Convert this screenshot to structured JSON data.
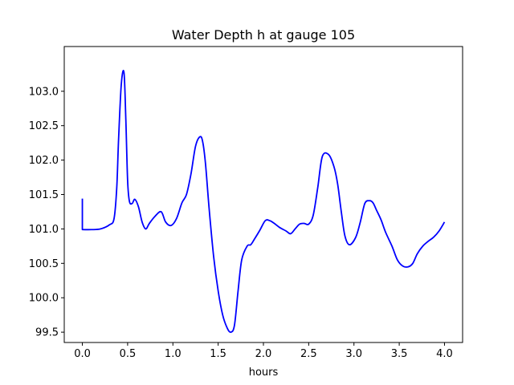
{
  "chart_data": {
    "type": "line",
    "title": "Water Depth h at gauge 105",
    "xlabel": "hours",
    "ylabel": "",
    "xlim": [
      -0.2,
      4.2
    ],
    "ylim": [
      99.35,
      103.65
    ],
    "x_ticks": [
      0.0,
      0.5,
      1.0,
      1.5,
      2.0,
      2.5,
      3.0,
      3.5,
      4.0
    ],
    "x_tick_labels": [
      "0.0",
      "0.5",
      "1.0",
      "1.5",
      "2.0",
      "2.5",
      "3.0",
      "3.5",
      "4.0"
    ],
    "y_ticks": [
      99.5,
      100.0,
      100.5,
      101.0,
      101.5,
      102.0,
      102.5,
      103.0
    ],
    "y_tick_labels": [
      "99.5",
      "100.0",
      "100.5",
      "101.0",
      "101.5",
      "102.0",
      "102.5",
      "103.0"
    ],
    "grid": false,
    "series": [
      {
        "color": "#0000ff",
        "x": [
          0.0,
          0.0,
          0.1,
          0.2,
          0.3,
          0.35,
          0.38,
          0.4,
          0.43,
          0.46,
          0.48,
          0.5,
          0.52,
          0.55,
          0.58,
          0.62,
          0.66,
          0.7,
          0.74,
          0.8,
          0.87,
          0.92,
          0.98,
          1.04,
          1.1,
          1.15,
          1.2,
          1.25,
          1.3,
          1.33,
          1.36,
          1.4,
          1.45,
          1.5,
          1.55,
          1.6,
          1.64,
          1.68,
          1.72,
          1.76,
          1.82,
          1.86,
          1.9,
          1.96,
          2.02,
          2.07,
          2.12,
          2.18,
          2.25,
          2.3,
          2.35,
          2.4,
          2.45,
          2.5,
          2.55,
          2.6,
          2.65,
          2.72,
          2.78,
          2.82,
          2.86,
          2.9,
          2.95,
          3.02,
          3.07,
          3.12,
          3.17,
          3.21,
          3.25,
          3.3,
          3.35,
          3.42,
          3.48,
          3.54,
          3.6,
          3.65,
          3.7,
          3.76,
          3.82,
          3.88,
          3.94,
          4.0
        ],
        "y": [
          101.44,
          100.99,
          100.99,
          101.0,
          101.06,
          101.15,
          101.6,
          102.3,
          103.1,
          103.27,
          102.6,
          101.7,
          101.4,
          101.37,
          101.43,
          101.32,
          101.1,
          101.0,
          101.08,
          101.18,
          101.25,
          101.1,
          101.05,
          101.15,
          101.38,
          101.5,
          101.8,
          102.2,
          102.34,
          102.26,
          101.95,
          101.3,
          100.6,
          100.1,
          99.75,
          99.56,
          99.5,
          99.6,
          100.1,
          100.55,
          100.75,
          100.77,
          100.85,
          100.98,
          101.12,
          101.12,
          101.08,
          101.02,
          100.97,
          100.93,
          101.0,
          101.07,
          101.08,
          101.07,
          101.2,
          101.6,
          102.05,
          102.08,
          101.9,
          101.65,
          101.25,
          100.9,
          100.77,
          100.88,
          101.1,
          101.37,
          101.41,
          101.38,
          101.27,
          101.13,
          100.95,
          100.75,
          100.55,
          100.46,
          100.45,
          100.5,
          100.64,
          100.75,
          100.82,
          100.88,
          100.97,
          101.1
        ]
      }
    ]
  }
}
